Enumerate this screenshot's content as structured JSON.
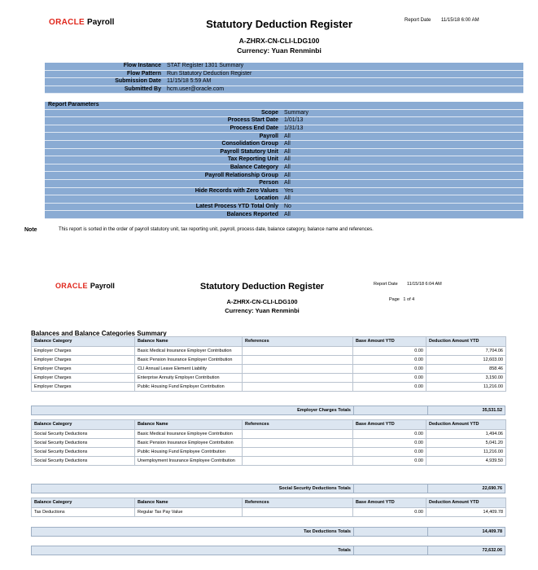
{
  "page1": {
    "brand": "ORACLE",
    "product": "Payroll",
    "title": "Statutory Deduction Register",
    "report_date_label": "Report Date",
    "report_date": "11/15/18 6:00 AM",
    "report_id": "A-ZHRX-CN-CLI-LDG100",
    "currency": "Currency: Yuan Renminbi",
    "flow": [
      [
        "Flow Instance",
        "STAT Register 1301 Summary"
      ],
      [
        "Flow Pattern",
        "Run Statutory Deduction Register"
      ],
      [
        "Submission Date",
        "11/15/18 5:59 AM"
      ],
      [
        "Submitted By",
        "hcm.user@oracle.com"
      ]
    ],
    "parameters": {
      "title": "Report Parameters",
      "rows": [
        [
          "Scope",
          "Summary"
        ],
        [
          "Process Start Date",
          "1/01/13"
        ],
        [
          "Process End Date",
          "1/31/13"
        ],
        [
          "Payroll",
          "All"
        ],
        [
          "Consolidation Group",
          "All"
        ],
        [
          "Payroll Statutory Unit",
          "All"
        ],
        [
          "Tax Reporting Unit",
          "All"
        ],
        [
          "Balance Category",
          "All"
        ],
        [
          "Payroll Relationship Group",
          "All"
        ],
        [
          "Person",
          "All"
        ],
        [
          "Hide Records with Zero Values",
          "Yes"
        ],
        [
          "Location",
          "All"
        ],
        [
          "Latest Process YTD Total Only",
          "No"
        ],
        [
          "Balances Reported",
          "All"
        ]
      ]
    },
    "note": {
      "label": "Note",
      "text": "This report is sorted in the order of payroll statutory unit, tax reporting unit, payroll, process date, balance category, balance name and references."
    }
  },
  "page2": {
    "brand": "ORACLE",
    "product": "Payroll",
    "title": "Statutory Deduction Register",
    "report_date_label": "Report Date",
    "report_date": "11/15/18 6:04 AM",
    "page": "Page   1 of 4",
    "report_id": "A-ZHRX-CN-CLI-LDG100",
    "currency": "Currency: Yuan Renminbi",
    "section_title": "Balances and Balance Categories Summary",
    "sections": [
      {
        "headers": [
          "Balance Category",
          "Balance Name",
          "References",
          "Base Amount YTD",
          "Deduction Amount YTD"
        ],
        "rows": [
          [
            "Employer Charges",
            "Basic Medical Insurance Employer Contribution",
            "",
            "0.00",
            "7,704.06"
          ],
          [
            "Employer Charges",
            "Basic Pension Insurance Employer Contribution",
            "",
            "0.00",
            "12,603.00"
          ],
          [
            "Employer Charges",
            "CLI Annual Leave Element Liability",
            "",
            "0.00",
            "858.46"
          ],
          [
            "Employer Charges",
            "Enterprise Annuity Employer Contribution",
            "",
            "0.00",
            "3,150.00"
          ],
          [
            "Employer Charges",
            "Public Housing Fund Employer Contribution",
            "",
            "0.00",
            "11,216.00"
          ]
        ],
        "total_label": "Employer Charges Totals",
        "total": "35,531.52"
      },
      {
        "headers": [
          "Balance Category",
          "Balance Name",
          "References",
          "Base Amount YTD",
          "Deduction Amount YTD"
        ],
        "rows": [
          [
            "Social Security Deductions",
            "Basic Medical Insurance Employee Contribution",
            "",
            "0.00",
            "1,494.06"
          ],
          [
            "Social Security Deductions",
            "Basic Pension Insurance Employee Contribution",
            "",
            "0.00",
            "5,041.20"
          ],
          [
            "Social Security Deductions",
            "Public Housing Fund Employee Contribution",
            "",
            "0.00",
            "11,216.00"
          ],
          [
            "Social Security Deductions",
            "Unemployment Insurance Employee Contribution",
            "",
            "0.00",
            "4,939.50"
          ]
        ],
        "total_label": "Social Security Deductions Totals",
        "total": "22,690.76"
      },
      {
        "headers": [
          "Balance Category",
          "Balance Name",
          "References",
          "Base Amount YTD",
          "Deduction Amount YTD"
        ],
        "rows": [
          [
            "Tax Deductions",
            "Regular Tax Pay Value",
            "",
            "0.00",
            "14,409.78"
          ]
        ],
        "total_label": "Tax Deductions Totals",
        "total": "14,409.78"
      }
    ],
    "grand_total_label": "Totals",
    "grand_total": "72,632.06"
  }
}
